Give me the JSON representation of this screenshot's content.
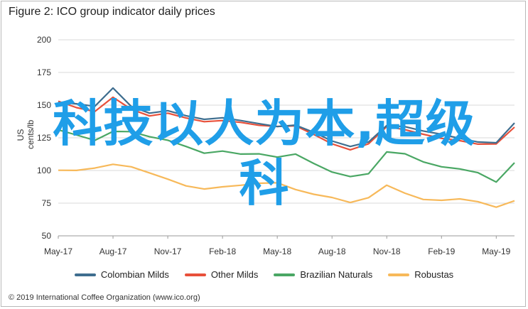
{
  "chart_data": {
    "type": "line",
    "title": "Figure 2: ICO group indicator daily prices",
    "ylabel": "US cents/lb",
    "xlabel": "",
    "ylim": [
      50,
      200
    ],
    "yticks": [
      50,
      75,
      100,
      125,
      150,
      175,
      200
    ],
    "xticks": [
      "May-17",
      "Aug-17",
      "Nov-17",
      "Feb-18",
      "May-18",
      "Aug-18",
      "Nov-18",
      "Feb-19",
      "May-19"
    ],
    "grid": "horizontal",
    "legend_position": "bottom",
    "x": [
      "May-17",
      "Jun-17",
      "Jul-17",
      "Aug-17",
      "Sep-17",
      "Oct-17",
      "Nov-17",
      "Dec-17",
      "Jan-18",
      "Feb-18",
      "Mar-18",
      "Apr-18",
      "May-18",
      "Jun-18",
      "Jul-18",
      "Aug-18",
      "Sep-18",
      "Oct-18",
      "Nov-18",
      "Dec-18",
      "Jan-19",
      "Feb-19",
      "Mar-19",
      "Apr-19",
      "May-19",
      "Jun-19"
    ],
    "series": [
      {
        "name": "Colombian Milds",
        "color": "#3f6e8f",
        "values": [
          152,
          150,
          148,
          163,
          150,
          145,
          146,
          141,
          138,
          140,
          139,
          137,
          134,
          134,
          128,
          122,
          119,
          123,
          135,
          133,
          129,
          127,
          125,
          123,
          122,
          136
        ]
      },
      {
        "name": "Other Milds",
        "color": "#e8503a",
        "values": [
          152,
          147,
          145,
          157,
          148,
          142,
          143,
          139,
          137,
          139,
          138,
          135,
          133,
          133,
          127,
          121,
          117,
          121,
          133,
          130,
          127,
          125,
          124,
          121,
          120,
          132
        ]
      },
      {
        "name": "Brazilian Naturals",
        "color": "#4aa764",
        "values": [
          130,
          127,
          124,
          131,
          130,
          125,
          122,
          118,
          114,
          116,
          113,
          112,
          109,
          112,
          106,
          100,
          96,
          97,
          113,
          112,
          107,
          104,
          102,
          98,
          90,
          105
        ]
      },
      {
        "name": "Robustas",
        "color": "#f7b95a",
        "values": [
          100,
          101,
          103,
          105,
          102,
          97,
          93,
          89,
          87,
          88,
          88,
          89,
          90,
          86,
          83,
          80,
          75,
          78,
          88,
          83,
          79,
          78,
          78,
          75,
          71,
          77
        ]
      }
    ]
  },
  "watermark": {
    "line1": "科技以人为本,超级",
    "line2": "科"
  },
  "footer": "© 2019 International Coffee Organization (www.ico.org)"
}
